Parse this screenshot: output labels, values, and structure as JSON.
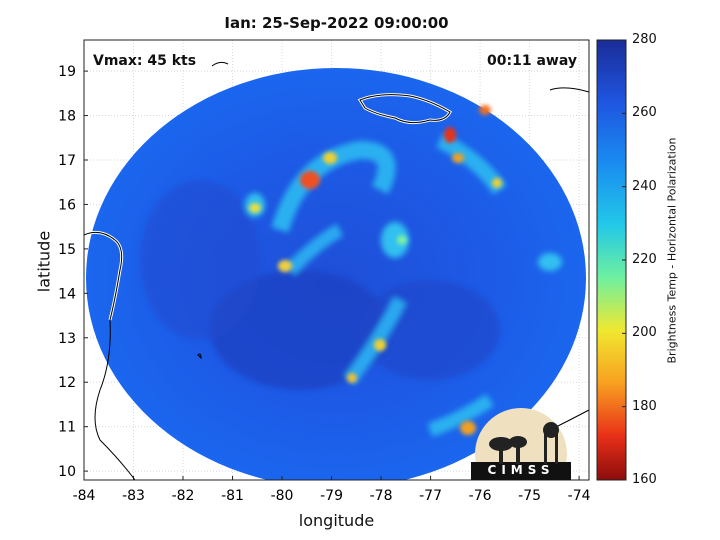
{
  "title": "Ian: 25-Sep-2022 09:00:00",
  "vmax_text": "Vmax: 45 kts",
  "away_text": "00:11 away",
  "xlabel": "longitude",
  "ylabel": "latitude",
  "colorbar": {
    "label": "Brightness Temp - Horizontal Polarization",
    "min": 160,
    "max": 280,
    "ticks": [
      280,
      260,
      240,
      220,
      200,
      180,
      160
    ],
    "colors": [
      "#1a2c98",
      "#1f55e0",
      "#1a8cf0",
      "#22c8e8",
      "#6ef0a0",
      "#f0e830",
      "#f8a020",
      "#e83018",
      "#8c0c0c"
    ]
  },
  "axes": {
    "x_ticks": [
      "-84",
      "-83",
      "-82",
      "-81",
      "-80",
      "-79",
      "-78",
      "-77",
      "-76",
      "-75",
      "-74"
    ],
    "y_ticks": [
      "19",
      "18",
      "17",
      "16",
      "15",
      "14",
      "13",
      "12",
      "11",
      "10"
    ],
    "xlim": [
      -84,
      -73.8
    ],
    "ylim": [
      9.8,
      19.7
    ]
  },
  "logo_text": "CIMSS"
}
